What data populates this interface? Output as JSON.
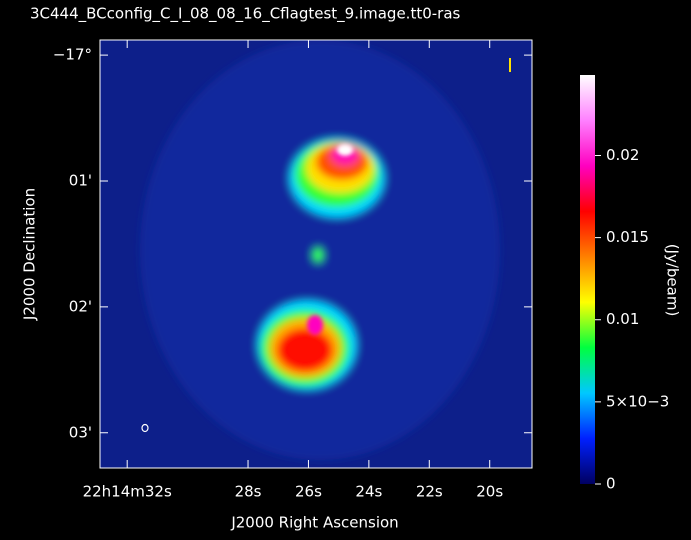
{
  "chart_data": {
    "type": "image",
    "title": "3C444_BCconfig_C_I_08_08_16_Cflagtest_9.image.tt0-ras",
    "xlabel": "J2000 Right Ascension",
    "ylabel": "J2000 Declination",
    "xlim": [
      32.9,
      18.6
    ],
    "xticks": [
      {
        "value": 32,
        "label": "22h14m32s"
      },
      {
        "value": 28,
        "label": "28s"
      },
      {
        "value": 26,
        "label": "26s"
      },
      {
        "value": 24,
        "label": "24s"
      },
      {
        "value": 22,
        "label": "22s"
      },
      {
        "value": 20,
        "label": "20s"
      }
    ],
    "ylim": [
      3.28,
      -0.12
    ],
    "yticks": [
      {
        "value": 0,
        "label": "−17°"
      },
      {
        "value": 1,
        "label": "01'"
      },
      {
        "value": 2,
        "label": "02'"
      },
      {
        "value": 3,
        "label": "03'"
      }
    ],
    "colorbar_label": "(Jy/beam)",
    "clim": [
      0,
      0.0249
    ],
    "cticks": [
      0,
      {
        "value": 0.005,
        "label": "5×10−3"
      },
      0.01,
      0.015,
      0.02
    ],
    "colormap": [
      "#000060",
      "#0020ff",
      "#00c8ff",
      "#00ff40",
      "#ffff00",
      "#ff8000",
      "#ff0000",
      "#ff00c0",
      "#ff80ff",
      "#ffffff"
    ]
  }
}
